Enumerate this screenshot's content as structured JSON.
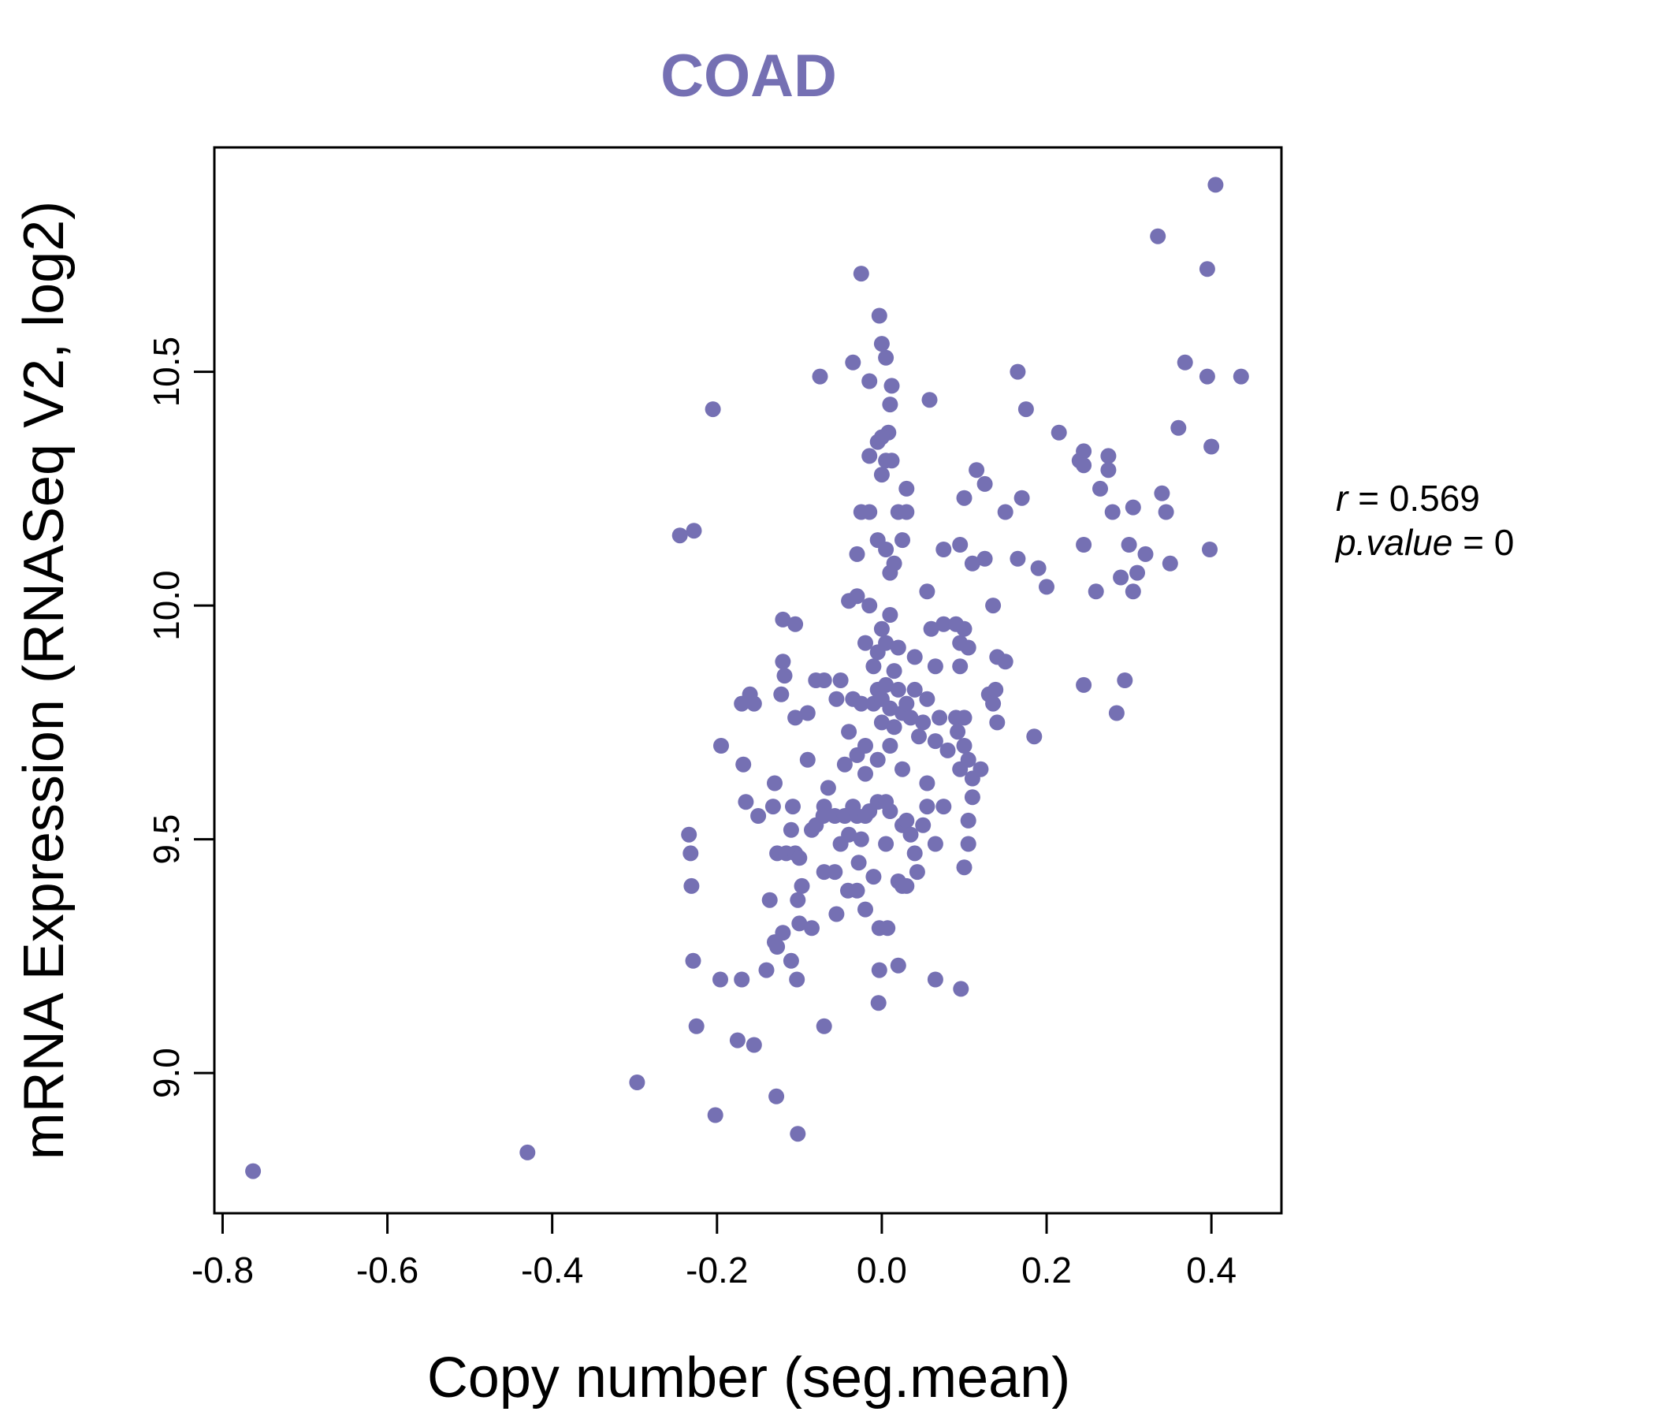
{
  "chart_data": {
    "type": "scatter",
    "title": "COAD",
    "xlabel": "Copy number (seg.mean)",
    "ylabel": "mRNA Expression (RNASeq V2, log2)",
    "xlim": [
      -0.81,
      0.485
    ],
    "ylim": [
      8.7,
      10.98
    ],
    "x_ticks": [
      -0.8,
      -0.6,
      -0.4,
      -0.2,
      0.0,
      0.2,
      0.4
    ],
    "x_tick_labels": [
      "-0.8",
      "-0.6",
      "-0.4",
      "-0.2",
      "0.0",
      "0.2",
      "0.4"
    ],
    "y_ticks": [
      9.0,
      9.5,
      10.0,
      10.5
    ],
    "y_tick_labels": [
      "9.0",
      "9.5",
      "10.0",
      "10.5"
    ],
    "point_color": "#7570b3",
    "grid": false,
    "stats": {
      "r_symbol": "r",
      "r_value": "0.569",
      "p_symbol": "p.value",
      "p_value": "0"
    },
    "points": [
      [
        -0.763,
        8.79
      ],
      [
        -0.43,
        8.83
      ],
      [
        -0.297,
        8.98
      ],
      [
        -0.202,
        8.91
      ],
      [
        -0.102,
        8.87
      ],
      [
        -0.128,
        8.95
      ],
      [
        -0.225,
        9.1
      ],
      [
        -0.175,
        9.07
      ],
      [
        -0.155,
        9.06
      ],
      [
        -0.07,
        9.1
      ],
      [
        -0.004,
        9.15
      ],
      [
        -0.229,
        9.24
      ],
      [
        -0.196,
        9.2
      ],
      [
        -0.17,
        9.2
      ],
      [
        -0.14,
        9.22
      ],
      [
        -0.11,
        9.24
      ],
      [
        -0.103,
        9.2
      ],
      [
        -0.003,
        9.22
      ],
      [
        0.02,
        9.23
      ],
      [
        0.065,
        9.2
      ],
      [
        0.096,
        9.18
      ],
      [
        -0.234,
        9.51
      ],
      [
        -0.232,
        9.47
      ],
      [
        -0.231,
        9.4
      ],
      [
        -0.195,
        9.7
      ],
      [
        -0.168,
        9.66
      ],
      [
        -0.165,
        9.58
      ],
      [
        -0.15,
        9.55
      ],
      [
        -0.132,
        9.57
      ],
      [
        -0.13,
        9.62
      ],
      [
        -0.136,
        9.37
      ],
      [
        -0.13,
        9.28
      ],
      [
        -0.127,
        9.27
      ],
      [
        -0.12,
        9.3
      ],
      [
        -0.127,
        9.47
      ],
      [
        -0.116,
        9.47
      ],
      [
        -0.11,
        9.52
      ],
      [
        -0.108,
        9.57
      ],
      [
        -0.105,
        9.47
      ],
      [
        -0.1,
        9.46
      ],
      [
        -0.097,
        9.4
      ],
      [
        -0.102,
        9.37
      ],
      [
        -0.1,
        9.32
      ],
      [
        -0.085,
        9.31
      ],
      [
        -0.07,
        9.43
      ],
      [
        -0.057,
        9.43
      ],
      [
        -0.055,
        9.34
      ],
      [
        -0.05,
        9.49
      ],
      [
        -0.041,
        9.39
      ],
      [
        -0.03,
        9.39
      ],
      [
        -0.028,
        9.45
      ],
      [
        -0.02,
        9.35
      ],
      [
        -0.01,
        9.42
      ],
      [
        -0.003,
        9.31
      ],
      [
        0.007,
        9.31
      ],
      [
        0.005,
        9.49
      ],
      [
        -0.085,
        9.52
      ],
      [
        -0.08,
        9.53
      ],
      [
        -0.071,
        9.55
      ],
      [
        -0.07,
        9.57
      ],
      [
        -0.065,
        9.61
      ],
      [
        -0.057,
        9.55
      ],
      [
        -0.045,
        9.55
      ],
      [
        -0.04,
        9.51
      ],
      [
        -0.035,
        9.57
      ],
      [
        -0.03,
        9.55
      ],
      [
        -0.025,
        9.5
      ],
      [
        -0.02,
        9.55
      ],
      [
        -0.015,
        9.56
      ],
      [
        -0.005,
        9.58
      ],
      [
        0.005,
        9.58
      ],
      [
        0.01,
        9.56
      ],
      [
        0.025,
        9.53
      ],
      [
        0.03,
        9.54
      ],
      [
        0.035,
        9.51
      ],
      [
        0.04,
        9.47
      ],
      [
        0.043,
        9.43
      ],
      [
        0.05,
        9.53
      ],
      [
        0.055,
        9.57
      ],
      [
        0.055,
        9.62
      ],
      [
        0.065,
        9.49
      ],
      [
        0.075,
        9.57
      ],
      [
        0.02,
        9.41
      ],
      [
        0.025,
        9.4
      ],
      [
        0.03,
        9.4
      ],
      [
        0.1,
        9.44
      ],
      [
        0.105,
        9.49
      ],
      [
        0.105,
        9.54
      ],
      [
        0.11,
        9.59
      ],
      [
        0.11,
        9.63
      ],
      [
        -0.17,
        9.79
      ],
      [
        -0.16,
        9.81
      ],
      [
        -0.155,
        9.79
      ],
      [
        -0.12,
        9.88
      ],
      [
        -0.118,
        9.85
      ],
      [
        -0.122,
        9.81
      ],
      [
        -0.105,
        9.76
      ],
      [
        -0.09,
        9.77
      ],
      [
        -0.09,
        9.67
      ],
      [
        -0.08,
        9.84
      ],
      [
        -0.07,
        9.84
      ],
      [
        -0.055,
        9.8
      ],
      [
        -0.05,
        9.84
      ],
      [
        -0.045,
        9.66
      ],
      [
        -0.04,
        9.73
      ],
      [
        -0.035,
        9.8
      ],
      [
        -0.03,
        9.68
      ],
      [
        -0.025,
        9.79
      ],
      [
        -0.02,
        9.64
      ],
      [
        -0.02,
        9.7
      ],
      [
        -0.01,
        9.79
      ],
      [
        -0.005,
        9.82
      ],
      [
        -0.005,
        9.67
      ],
      [
        0.0,
        9.75
      ],
      [
        0.0,
        9.8
      ],
      [
        0.005,
        9.83
      ],
      [
        0.01,
        9.78
      ],
      [
        0.01,
        9.7
      ],
      [
        0.015,
        9.74
      ],
      [
        0.02,
        9.82
      ],
      [
        0.025,
        9.77
      ],
      [
        0.025,
        9.65
      ],
      [
        0.03,
        9.79
      ],
      [
        0.035,
        9.76
      ],
      [
        0.04,
        9.82
      ],
      [
        0.045,
        9.72
      ],
      [
        0.05,
        9.75
      ],
      [
        0.055,
        9.8
      ],
      [
        0.065,
        9.71
      ],
      [
        0.07,
        9.76
      ],
      [
        0.08,
        9.69
      ],
      [
        0.09,
        9.76
      ],
      [
        0.092,
        9.73
      ],
      [
        0.095,
        9.65
      ],
      [
        0.1,
        9.76
      ],
      [
        0.1,
        9.7
      ],
      [
        0.105,
        9.67
      ],
      [
        0.12,
        9.65
      ],
      [
        0.13,
        9.81
      ],
      [
        0.135,
        9.79
      ],
      [
        0.138,
        9.82
      ],
      [
        0.14,
        9.75
      ],
      [
        0.185,
        9.72
      ],
      [
        -0.12,
        9.97
      ],
      [
        -0.105,
        9.96
      ],
      [
        -0.04,
        10.01
      ],
      [
        -0.03,
        10.02
      ],
      [
        -0.02,
        9.92
      ],
      [
        -0.015,
        10.0
      ],
      [
        -0.01,
        9.87
      ],
      [
        -0.005,
        9.9
      ],
      [
        0.0,
        9.95
      ],
      [
        0.005,
        9.92
      ],
      [
        0.01,
        9.98
      ],
      [
        0.015,
        9.86
      ],
      [
        0.02,
        9.91
      ],
      [
        0.04,
        9.89
      ],
      [
        0.055,
        10.03
      ],
      [
        0.06,
        9.95
      ],
      [
        0.065,
        9.87
      ],
      [
        0.075,
        9.96
      ],
      [
        0.09,
        9.96
      ],
      [
        0.095,
        9.92
      ],
      [
        0.1,
        9.95
      ],
      [
        0.105,
        9.91
      ],
      [
        0.095,
        9.87
      ],
      [
        0.135,
        10.0
      ],
      [
        0.14,
        9.89
      ],
      [
        0.15,
        9.88
      ],
      [
        -0.245,
        10.15
      ],
      [
        -0.228,
        10.16
      ],
      [
        -0.03,
        10.11
      ],
      [
        -0.025,
        10.2
      ],
      [
        -0.015,
        10.2
      ],
      [
        -0.005,
        10.14
      ],
      [
        0.005,
        10.12
      ],
      [
        0.01,
        10.07
      ],
      [
        0.015,
        10.09
      ],
      [
        0.02,
        10.2
      ],
      [
        0.025,
        10.14
      ],
      [
        0.03,
        10.2
      ],
      [
        0.075,
        10.12
      ],
      [
        0.095,
        10.13
      ],
      [
        0.11,
        10.09
      ],
      [
        0.125,
        10.1
      ],
      [
        0.165,
        10.1
      ],
      [
        0.19,
        10.08
      ],
      [
        0.2,
        10.04
      ],
      [
        0.03,
        10.25
      ],
      [
        0.1,
        10.23
      ],
      [
        0.115,
        10.29
      ],
      [
        0.125,
        10.26
      ],
      [
        0.15,
        10.2
      ],
      [
        0.17,
        10.23
      ],
      [
        -0.015,
        10.32
      ],
      [
        -0.005,
        10.35
      ],
      [
        0.0,
        10.28
      ],
      [
        0.005,
        10.31
      ],
      [
        0.008,
        10.37
      ],
      [
        0.012,
        10.31
      ],
      [
        0.0,
        10.36
      ],
      [
        -0.205,
        10.42
      ],
      [
        -0.075,
        10.49
      ],
      [
        -0.035,
        10.52
      ],
      [
        -0.015,
        10.48
      ],
      [
        0.0,
        10.56
      ],
      [
        0.005,
        10.53
      ],
      [
        0.01,
        10.43
      ],
      [
        0.012,
        10.47
      ],
      [
        0.058,
        10.44
      ],
      [
        0.165,
        10.5
      ],
      [
        0.175,
        10.42
      ],
      [
        -0.003,
        10.62
      ],
      [
        -0.025,
        10.71
      ],
      [
        0.215,
        10.37
      ],
      [
        0.24,
        10.31
      ],
      [
        0.245,
        10.33
      ],
      [
        0.245,
        10.3
      ],
      [
        0.245,
        10.13
      ],
      [
        0.245,
        9.83
      ],
      [
        0.26,
        10.03
      ],
      [
        0.265,
        10.25
      ],
      [
        0.275,
        10.32
      ],
      [
        0.275,
        10.29
      ],
      [
        0.28,
        10.2
      ],
      [
        0.285,
        9.77
      ],
      [
        0.29,
        10.06
      ],
      [
        0.295,
        9.84
      ],
      [
        0.3,
        10.13
      ],
      [
        0.305,
        10.21
      ],
      [
        0.305,
        10.03
      ],
      [
        0.31,
        10.07
      ],
      [
        0.32,
        10.11
      ],
      [
        0.335,
        10.79
      ],
      [
        0.34,
        10.24
      ],
      [
        0.345,
        10.2
      ],
      [
        0.35,
        10.09
      ],
      [
        0.36,
        10.38
      ],
      [
        0.368,
        10.52
      ],
      [
        0.395,
        10.72
      ],
      [
        0.395,
        10.49
      ],
      [
        0.398,
        10.12
      ],
      [
        0.4,
        10.34
      ],
      [
        0.405,
        10.9
      ],
      [
        0.436,
        10.49
      ]
    ]
  }
}
